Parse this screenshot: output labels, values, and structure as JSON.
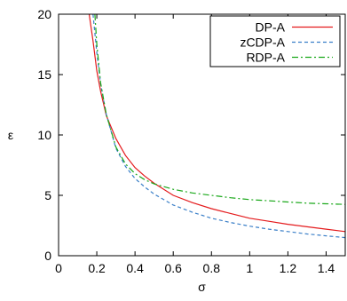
{
  "chart_data": {
    "type": "line",
    "title": "",
    "xlabel": "σ",
    "ylabel": "ε",
    "xlim": [
      0,
      1.5
    ],
    "ylim": [
      0,
      20
    ],
    "xticks": [
      {
        "v": 0,
        "label": "0"
      },
      {
        "v": 0.2,
        "label": "0.2"
      },
      {
        "v": 0.4,
        "label": "0.4"
      },
      {
        "v": 0.6,
        "label": "0.6"
      },
      {
        "v": 0.8,
        "label": "0.8"
      },
      {
        "v": 1.0,
        "label": "1"
      },
      {
        "v": 1.2,
        "label": "1.2"
      },
      {
        "v": 1.4,
        "label": "1.4"
      }
    ],
    "yticks": [
      {
        "v": 0,
        "label": "0"
      },
      {
        "v": 5,
        "label": "5"
      },
      {
        "v": 10,
        "label": "10"
      },
      {
        "v": 15,
        "label": "15"
      },
      {
        "v": 20,
        "label": "20"
      }
    ],
    "grid": false,
    "legend_position": "top-right",
    "series": [
      {
        "name": "DP-A",
        "color": "#e41a1c",
        "dash": "solid",
        "points": [
          [
            0.16,
            20.0
          ],
          [
            0.18,
            17.8
          ],
          [
            0.2,
            15.3
          ],
          [
            0.22,
            13.6
          ],
          [
            0.25,
            11.6
          ],
          [
            0.3,
            9.7
          ],
          [
            0.35,
            8.3
          ],
          [
            0.4,
            7.3
          ],
          [
            0.45,
            6.6
          ],
          [
            0.5,
            6.0
          ],
          [
            0.6,
            5.0
          ],
          [
            0.7,
            4.4
          ],
          [
            0.8,
            3.9
          ],
          [
            0.9,
            3.5
          ],
          [
            1.0,
            3.1
          ],
          [
            1.1,
            2.85
          ],
          [
            1.2,
            2.6
          ],
          [
            1.3,
            2.4
          ],
          [
            1.4,
            2.2
          ],
          [
            1.5,
            2.0
          ]
        ]
      },
      {
        "name": "zCDP-A",
        "color": "#3a7fc8",
        "dash": "dashed",
        "points": [
          [
            0.18,
            20.0
          ],
          [
            0.2,
            16.8
          ],
          [
            0.22,
            14.2
          ],
          [
            0.25,
            11.7
          ],
          [
            0.3,
            8.9
          ],
          [
            0.35,
            7.4
          ],
          [
            0.4,
            6.4
          ],
          [
            0.45,
            5.7
          ],
          [
            0.5,
            5.1
          ],
          [
            0.6,
            4.2
          ],
          [
            0.7,
            3.6
          ],
          [
            0.8,
            3.1
          ],
          [
            0.9,
            2.75
          ],
          [
            1.0,
            2.45
          ],
          [
            1.1,
            2.2
          ],
          [
            1.2,
            2.0
          ],
          [
            1.3,
            1.8
          ],
          [
            1.4,
            1.65
          ],
          [
            1.5,
            1.5
          ]
        ]
      },
      {
        "name": "RDP-A",
        "color": "#1aa81a",
        "dash": "dashdot",
        "points": [
          [
            0.19,
            20.0
          ],
          [
            0.2,
            17.5
          ],
          [
            0.22,
            14.3
          ],
          [
            0.25,
            11.7
          ],
          [
            0.3,
            9.0
          ],
          [
            0.35,
            7.6
          ],
          [
            0.4,
            6.8
          ],
          [
            0.45,
            6.3
          ],
          [
            0.5,
            5.95
          ],
          [
            0.6,
            5.5
          ],
          [
            0.7,
            5.2
          ],
          [
            0.8,
            5.0
          ],
          [
            0.9,
            4.8
          ],
          [
            1.0,
            4.65
          ],
          [
            1.1,
            4.55
          ],
          [
            1.2,
            4.45
          ],
          [
            1.3,
            4.35
          ],
          [
            1.4,
            4.3
          ],
          [
            1.5,
            4.25
          ]
        ]
      }
    ]
  }
}
